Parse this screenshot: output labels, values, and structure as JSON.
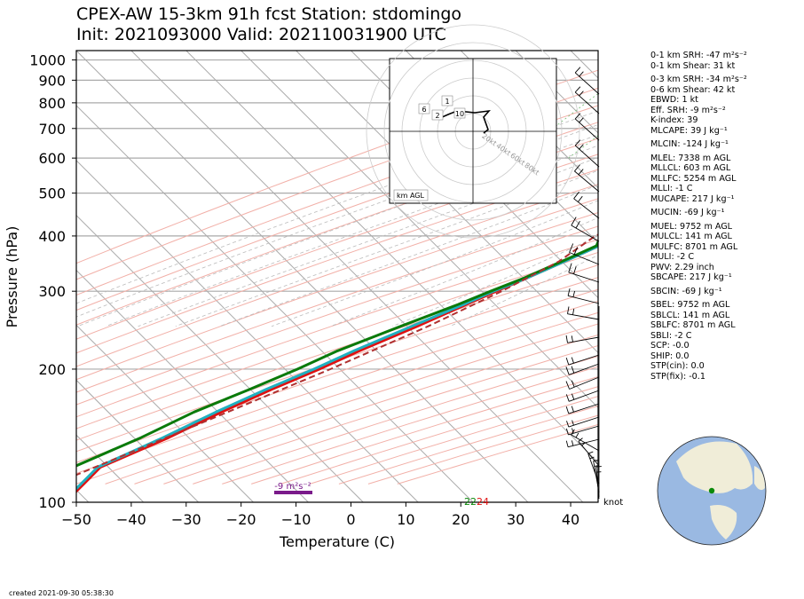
{
  "title_line1": "CPEX-AW 15-3km  91h fcst  Station: stdomingo",
  "title_line2": "Init: 2021093000  Valid: 202110031900 UTC",
  "footer": "created 2021-09-30 05:38:30",
  "chart_data": {
    "type": "line",
    "subtype": "skew-T log-P sounding",
    "xlabel": "Temperature (C)",
    "ylabel": "Pressure (hPa)",
    "xlim": [
      -50,
      45
    ],
    "ylim": [
      1050,
      100
    ],
    "yscale": "log",
    "x_ticks": [
      "−50",
      "−40",
      "−30",
      "−20",
      "−10",
      "0",
      "10",
      "20",
      "30",
      "40"
    ],
    "y_ticks": [
      100,
      200,
      300,
      400,
      500,
      600,
      700,
      800,
      900,
      1000
    ],
    "grid": true,
    "series": [
      {
        "color": "#e01010",
        "points": [
          [
            1010,
            24
          ],
          [
            980,
            23
          ],
          [
            950,
            23
          ],
          [
            920,
            23
          ],
          [
            900,
            22.5
          ],
          [
            880,
            22
          ],
          [
            850,
            21
          ],
          [
            800,
            18.5
          ],
          [
            750,
            17
          ],
          [
            700,
            14.5
          ],
          [
            650,
            12
          ],
          [
            600,
            9.5
          ],
          [
            550,
            7
          ],
          [
            500,
            4
          ],
          [
            470,
            2.5
          ],
          [
            450,
            1.5
          ],
          [
            420,
            -0.5
          ],
          [
            400,
            -2.5
          ],
          [
            380,
            -1.5
          ],
          [
            350,
            -5
          ],
          [
            320,
            -9
          ],
          [
            300,
            -12
          ],
          [
            280,
            -15
          ],
          [
            250,
            -20
          ],
          [
            220,
            -26
          ],
          [
            200,
            -30
          ],
          [
            180,
            -35
          ],
          [
            160,
            -40
          ],
          [
            140,
            -45
          ],
          [
            120,
            -52
          ],
          [
            110,
            -52
          ],
          [
            100,
            -52
          ]
        ]
      },
      {
        "color": "#20b0c0",
        "points": [
          [
            1010,
            22
          ],
          [
            980,
            21
          ],
          [
            950,
            20.5
          ],
          [
            920,
            20
          ],
          [
            900,
            19
          ],
          [
            880,
            18.5
          ],
          [
            850,
            18
          ],
          [
            800,
            17.5
          ],
          [
            750,
            16.5
          ],
          [
            700,
            14.5
          ],
          [
            650,
            12
          ],
          [
            600,
            9.5
          ],
          [
            550,
            7
          ],
          [
            500,
            4
          ],
          [
            470,
            2.5
          ],
          [
            450,
            1.5
          ],
          [
            420,
            -0.5
          ],
          [
            400,
            -2.5
          ],
          [
            380,
            -1.5
          ],
          [
            350,
            -5
          ],
          [
            320,
            -9
          ],
          [
            300,
            -12.5
          ],
          [
            280,
            -15.5
          ],
          [
            250,
            -21
          ],
          [
            220,
            -27
          ],
          [
            200,
            -31
          ],
          [
            180,
            -36
          ],
          [
            160,
            -41
          ],
          [
            140,
            -46
          ],
          [
            120,
            -52.5
          ],
          [
            110,
            -52.5
          ],
          [
            100,
            -52.5
          ]
        ]
      },
      {
        "color": "#0a7a0a",
        "points": [
          [
            1010,
            22
          ],
          [
            980,
            20
          ],
          [
            950,
            19
          ],
          [
            920,
            18
          ],
          [
            900,
            17
          ],
          [
            880,
            16.5
          ],
          [
            850,
            16
          ],
          [
            800,
            15.5
          ],
          [
            750,
            15
          ],
          [
            700,
            13.5
          ],
          [
            650,
            11.5
          ],
          [
            600,
            9
          ],
          [
            550,
            6.5
          ],
          [
            500,
            3.5
          ],
          [
            470,
            2
          ],
          [
            450,
            1
          ],
          [
            420,
            -1
          ],
          [
            400,
            -3
          ],
          [
            380,
            -2
          ],
          [
            350,
            -5.5
          ],
          [
            320,
            -9.5
          ],
          [
            300,
            -13
          ],
          [
            280,
            -16.5
          ],
          [
            250,
            -23
          ],
          [
            220,
            -30
          ],
          [
            200,
            -34
          ],
          [
            180,
            -39
          ],
          [
            160,
            -45
          ],
          [
            140,
            -50
          ],
          [
            120,
            -57
          ],
          [
            110,
            -57
          ],
          [
            100,
            -57
          ]
        ]
      },
      {
        "color": "#b03030",
        "dashed": true,
        "points": [
          [
            1000,
            27
          ],
          [
            950,
            25.5
          ],
          [
            900,
            24.5
          ],
          [
            850,
            23.5
          ],
          [
            800,
            22
          ],
          [
            700,
            18
          ],
          [
            600,
            12
          ],
          [
            500,
            5
          ],
          [
            400,
            -4
          ],
          [
            350,
            -6
          ],
          [
            300,
            -11
          ],
          [
            250,
            -18
          ],
          [
            200,
            -28
          ],
          [
            150,
            -42
          ],
          [
            100,
            -62
          ]
        ]
      }
    ],
    "annotations": {
      "srh_label": "-9 m²s⁻²",
      "sfc_temp": "24",
      "sfc_dewp": "22"
    },
    "wind_unit_label": "knot",
    "hodograph": {
      "rings": [
        "20kt",
        "40kt",
        "60kt",
        "80kt"
      ],
      "height_labels": [
        "1",
        "2",
        "6",
        "10"
      ],
      "legend": "km AGL"
    }
  },
  "indices": [
    {
      "text": "0-1 km SRH: -47 m²s⁻²"
    },
    {
      "text": "0-1 km Shear: 31 kt"
    },
    {
      "text": "0-3 km SRH: -34 m²s⁻²",
      "gap": true
    },
    {
      "text": "0-6 km Shear: 42 kt"
    },
    {
      "text": "EBWD: 1 kt"
    },
    {
      "text": "Eff. SRH: -9 m²s⁻²"
    },
    {
      "text": "K-index: 39"
    },
    {
      "text": "MLCAPE: 39 J kg⁻¹"
    },
    {
      "text": "MLCIN: -124 J kg⁻¹",
      "gap": true
    },
    {
      "text": "MLEL: 7338 m AGL",
      "gap": true
    },
    {
      "text": "MLLCL: 603 m AGL"
    },
    {
      "text": "MLLFC: 5254 m AGL"
    },
    {
      "text": "MLLI: -1 C"
    },
    {
      "text": "MUCAPE: 217 J kg⁻¹"
    },
    {
      "text": "MUCIN: -69 J kg⁻¹",
      "gap": true
    },
    {
      "text": "MUEL: 9752 m AGL",
      "gap": true
    },
    {
      "text": "MULCL: 141 m AGL"
    },
    {
      "text": "MULFC: 8701 m AGL"
    },
    {
      "text": "MULI: -2 C"
    },
    {
      "text": "PWV: 2.29 inch"
    },
    {
      "text": "SBCAPE: 217 J kg⁻¹"
    },
    {
      "text": "SBCIN: -69 J kg⁻¹",
      "gap": true
    },
    {
      "text": "SBEL: 9752 m AGL",
      "gap": true
    },
    {
      "text": "SBLCL: 141 m AGL"
    },
    {
      "text": "SBLFC: 8701 m AGL"
    },
    {
      "text": "SBLI: -2 C"
    },
    {
      "text": "SCP: -0.0"
    },
    {
      "text": "SHIP: 0.0"
    },
    {
      "text": "STP(cin): 0.0"
    },
    {
      "text": "STP(fix): -0.1"
    }
  ]
}
